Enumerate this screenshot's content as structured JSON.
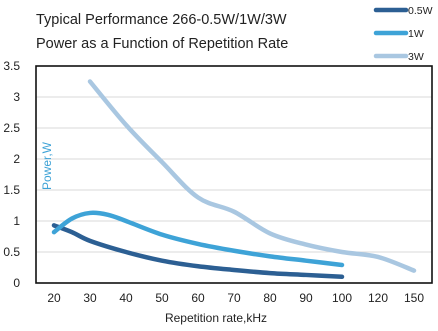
{
  "chart_data": {
    "type": "line",
    "title_lines": [
      "Typical Performance 266-0.5W/1W/3W",
      "Power as a Function of Repetition Rate"
    ],
    "xlabel": "Repetition rate,kHz",
    "ylabel": "Power,W",
    "x_ticks": [
      "20",
      "30",
      "40",
      "50",
      "60",
      "70",
      "80",
      "90",
      "100",
      "120",
      "150"
    ],
    "y_ticks": [
      "0",
      "0.5",
      "1",
      "1.5",
      "2",
      "2.5",
      "3",
      "3.5"
    ],
    "ylim": [
      0,
      3.5
    ],
    "grid": "horizontal",
    "legend_position": "top-right",
    "series": [
      {
        "name": "0.5W",
        "color": "#2c5f93",
        "points": [
          [
            "20",
            0.93
          ],
          [
            "25",
            0.82
          ],
          [
            "30",
            0.68
          ],
          [
            "40",
            0.5
          ],
          [
            "50",
            0.36
          ],
          [
            "60",
            0.27
          ],
          [
            "70",
            0.21
          ],
          [
            "80",
            0.16
          ],
          [
            "90",
            0.13
          ],
          [
            "100",
            0.1
          ]
        ]
      },
      {
        "name": "1W",
        "color": "#3ea3d7",
        "points": [
          [
            "20",
            0.82
          ],
          [
            "25",
            1.04
          ],
          [
            "30",
            1.13
          ],
          [
            "35",
            1.1
          ],
          [
            "40",
            1.0
          ],
          [
            "50",
            0.78
          ],
          [
            "60",
            0.63
          ],
          [
            "70",
            0.52
          ],
          [
            "80",
            0.43
          ],
          [
            "90",
            0.36
          ],
          [
            "100",
            0.29
          ]
        ]
      },
      {
        "name": "3W",
        "color": "#a9c7e1",
        "points": [
          [
            "30",
            3.25
          ],
          [
            "40",
            2.55
          ],
          [
            "50",
            1.95
          ],
          [
            "60",
            1.38
          ],
          [
            "70",
            1.15
          ],
          [
            "80",
            0.8
          ],
          [
            "90",
            0.62
          ],
          [
            "100",
            0.5
          ],
          [
            "120",
            0.42
          ],
          [
            "150",
            0.2
          ]
        ]
      }
    ]
  }
}
